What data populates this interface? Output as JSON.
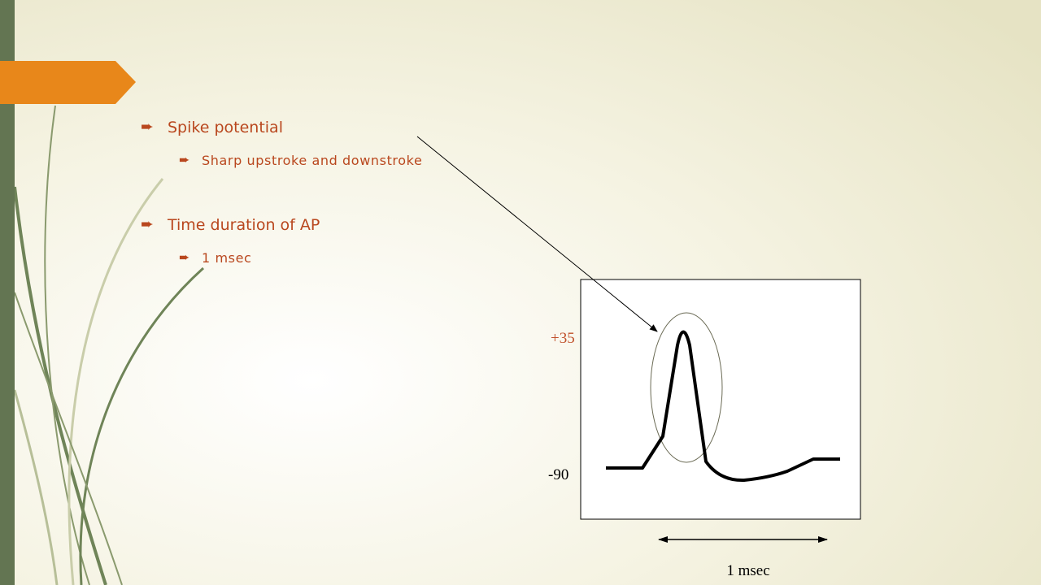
{
  "bullets": [
    {
      "text": "Spike potential",
      "sub": [
        "Sharp upstroke and downstroke"
      ]
    },
    {
      "text": "Time duration of AP",
      "sub": [
        "1 msec"
      ]
    }
  ],
  "figure": {
    "top_label": "+35",
    "bottom_label": "-90",
    "time_label": "1 msec"
  }
}
